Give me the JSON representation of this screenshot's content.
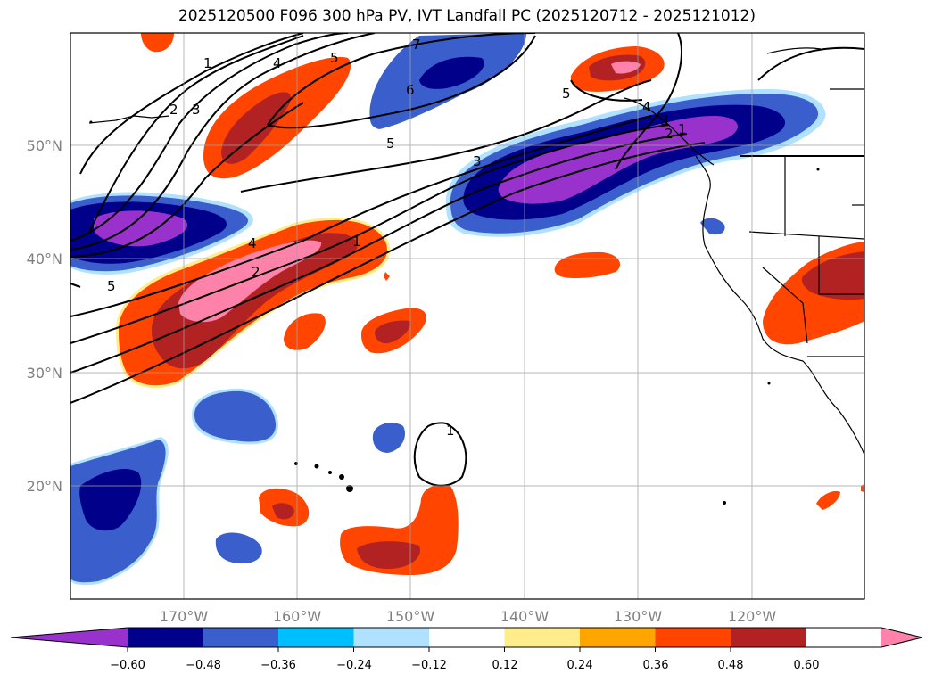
{
  "title": "2025120500 F096 300 hPa PV, IVT Landfall PC (2025120712 - 2025121012)",
  "lat_labels": [
    "50°N",
    "40°N",
    "30°N",
    "20°N"
  ],
  "lon_labels": [
    "170°W",
    "160°W",
    "150°W",
    "140°W",
    "130°W",
    "120°W"
  ],
  "colorbar": {
    "colors": [
      "#9932cc",
      "#00008b",
      "#3a5fcd",
      "#00bfff",
      "#b0e2ff",
      "#ffffff",
      "#ffec8b",
      "#ffa500",
      "#ff4500",
      "#b22222",
      "#ff82ab"
    ],
    "ticks": [
      "−0.60",
      "−0.48",
      "−0.36",
      "−0.24",
      "−0.12",
      "0.12",
      "0.24",
      "0.36",
      "0.48",
      "0.60"
    ]
  },
  "contour_labels": [
    "1",
    "2",
    "3",
    "4",
    "6",
    "5",
    "1",
    "5",
    "4",
    "3",
    "2",
    "1",
    "5",
    "1",
    "7",
    "5",
    "4",
    "3",
    "2"
  ]
}
